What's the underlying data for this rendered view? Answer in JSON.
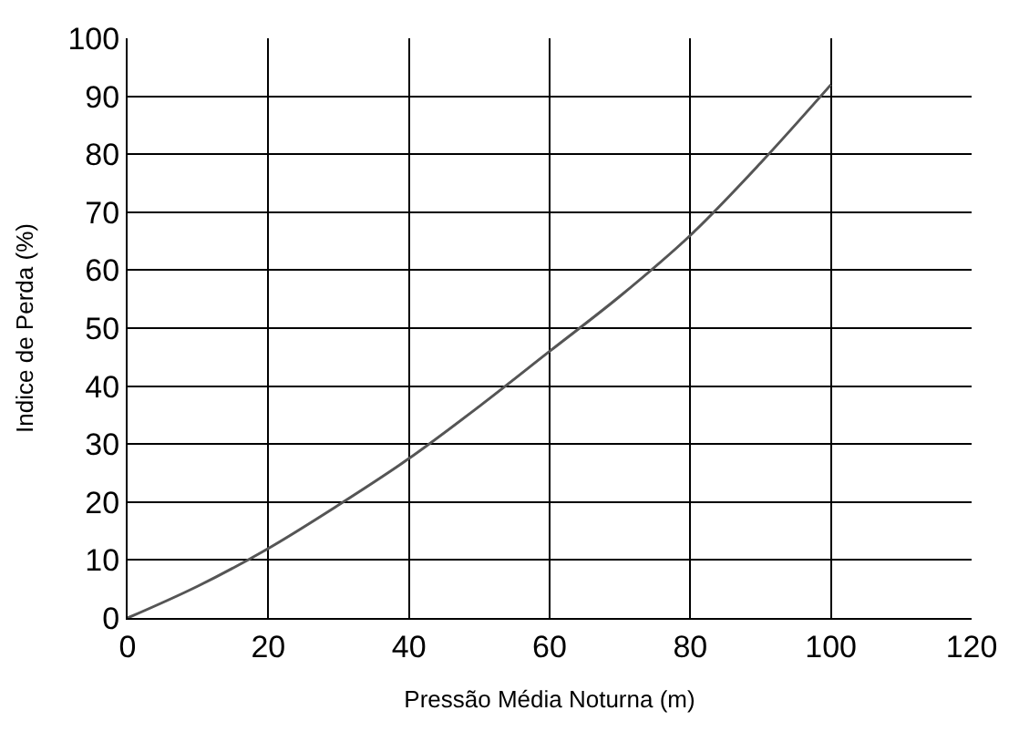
{
  "chart_data": {
    "type": "line",
    "xlabel": "Pressão Média Noturna (m)",
    "ylabel": "Indice de Perda (%)",
    "x": [
      0,
      10,
      20,
      30,
      40,
      50,
      60,
      70,
      80,
      90,
      100
    ],
    "series": [
      {
        "color": "#555555",
        "values": [
          0,
          5.5,
          12,
          19.5,
          27.5,
          36.5,
          46,
          55.5,
          66,
          78.5,
          92
        ]
      }
    ],
    "xlim": [
      0,
      120
    ],
    "xticks": [
      0,
      20,
      40,
      60,
      80,
      100,
      120
    ],
    "ylim": [
      0,
      100
    ],
    "yticks": [
      0,
      10,
      20,
      30,
      40,
      50,
      60,
      70,
      80,
      90,
      100
    ],
    "grid": true,
    "marker": "none",
    "line_style": "solid"
  }
}
